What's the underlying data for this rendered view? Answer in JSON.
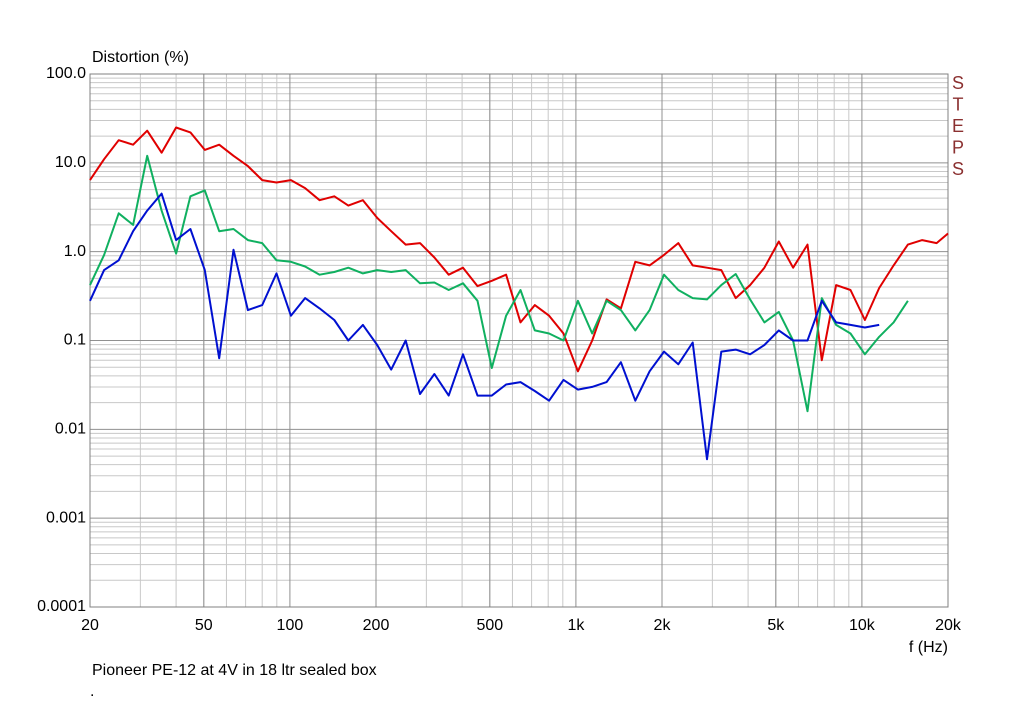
{
  "chart_data": {
    "type": "line",
    "title": "Distortion (%)",
    "xlabel": "f (Hz)",
    "watermark": "STEPS",
    "caption": "Pioneer PE-12 at 4V in 18 ltr sealed box",
    "note": ".",
    "xscale": "log",
    "yscale": "log",
    "grid": true,
    "xlim": [
      20,
      20000
    ],
    "ylim": [
      0.0001,
      100
    ],
    "xticks": [
      20,
      50,
      100,
      200,
      500,
      {
        "value": 1000,
        "label": "1k"
      },
      {
        "value": 2000,
        "label": "2k"
      },
      {
        "value": 5000,
        "label": "5k"
      },
      {
        "value": 10000,
        "label": "10k"
      },
      {
        "value": 20000,
        "label": "20k"
      }
    ],
    "yticks": [
      {
        "value": 100,
        "label": "100.0"
      },
      {
        "value": 10,
        "label": "10.0"
      },
      {
        "value": 1,
        "label": "1.0"
      },
      0.1,
      0.01,
      0.001,
      0.0001
    ],
    "x": [
      20,
      22.4,
      25.2,
      28.3,
      31.7,
      35.6,
      40,
      44.9,
      50.4,
      56.6,
      63.5,
      71.3,
      80,
      89.8,
      100.8,
      113,
      127,
      143,
      160,
      180,
      202,
      226,
      254,
      285,
      320,
      359,
      403,
      453,
      508,
      570,
      640,
      718,
      806,
      905,
      1016,
      1140,
      1280,
      1437,
      1613,
      1810,
      2032,
      2281,
      2560,
      2874,
      3225,
      3620,
      4064,
      4561,
      5120,
      5747,
      6451,
      7241,
      8127,
      9123,
      10240,
      11494,
      12902,
      14482,
      16255,
      18246,
      20000
    ],
    "series": [
      {
        "color": "#e00000",
        "values": [
          6.4,
          11,
          18,
          16,
          23,
          13,
          25,
          22,
          14,
          16,
          12,
          9.2,
          6.4,
          6,
          6.4,
          5.2,
          3.8,
          4.2,
          3.3,
          3.8,
          2.4,
          1.7,
          1.2,
          1.25,
          0.86,
          0.55,
          0.66,
          0.41,
          0.47,
          0.55,
          0.16,
          0.25,
          0.19,
          0.12,
          0.045,
          0.1,
          0.29,
          0.23,
          0.77,
          0.7,
          0.92,
          1.25,
          0.7,
          0.66,
          0.62,
          0.3,
          0.42,
          0.66,
          1.3,
          0.66,
          1.2,
          0.06,
          0.42,
          0.37,
          0.17,
          0.39,
          0.7,
          1.2,
          1.35,
          1.25,
          1.6
        ]
      },
      {
        "color": "#10b060",
        "values": [
          0.42,
          0.92,
          2.7,
          2,
          12,
          2.9,
          0.95,
          4.2,
          4.9,
          1.7,
          1.8,
          1.35,
          1.25,
          0.8,
          0.77,
          0.68,
          0.55,
          0.59,
          0.66,
          0.57,
          0.62,
          0.59,
          0.62,
          0.44,
          0.45,
          0.37,
          0.44,
          0.28,
          0.049,
          0.19,
          0.37,
          0.13,
          0.12,
          0.1,
          0.28,
          0.12,
          0.28,
          0.22,
          0.13,
          0.22,
          0.55,
          0.37,
          0.3,
          0.29,
          0.42,
          0.56,
          0.29,
          0.16,
          0.21,
          0.1,
          0.016,
          0.3,
          0.15,
          0.12,
          0.07,
          0.11,
          0.16,
          0.28,
          null,
          null,
          null
        ]
      },
      {
        "color": "#0010d0",
        "values": [
          0.28,
          0.62,
          0.8,
          1.7,
          2.9,
          4.5,
          1.35,
          1.8,
          0.62,
          0.063,
          1.05,
          0.22,
          0.25,
          0.57,
          0.19,
          0.3,
          0.23,
          0.17,
          0.1,
          0.15,
          0.089,
          0.047,
          0.1,
          0.025,
          0.042,
          0.024,
          0.07,
          0.024,
          0.024,
          0.032,
          0.034,
          0.027,
          0.021,
          0.036,
          0.028,
          0.03,
          0.034,
          0.057,
          0.021,
          0.045,
          0.075,
          0.054,
          0.095,
          0.0046,
          0.075,
          0.079,
          0.07,
          0.089,
          0.13,
          0.1,
          0.1,
          0.28,
          0.16,
          0.15,
          0.14,
          0.15,
          null,
          null,
          null,
          null,
          null
        ]
      }
    ]
  }
}
